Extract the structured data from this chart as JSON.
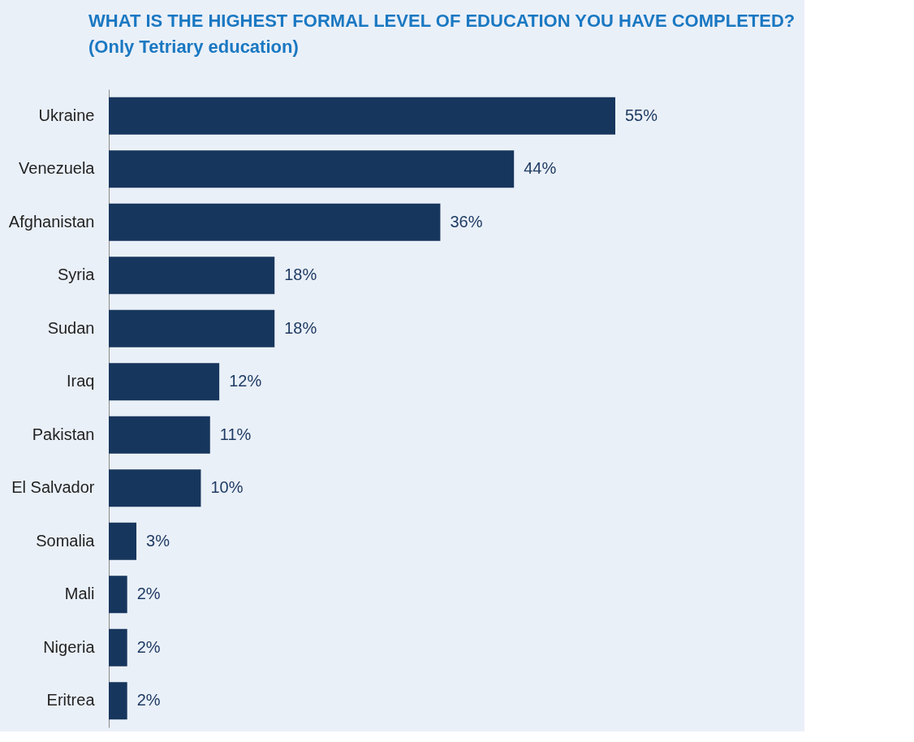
{
  "chart_data": {
    "type": "bar",
    "orientation": "horizontal",
    "title": "WHAT IS THE HIGHEST FORMAL LEVEL OF EDUCATION YOU HAVE COMPLETED?",
    "subtitle": "(Only Tetriary education)",
    "categories": [
      "Ukraine",
      "Venezuela",
      "Afghanistan",
      "Syria",
      "Sudan",
      "Iraq",
      "Pakistan",
      "El Salvador",
      "Somalia",
      "Mali",
      "Nigeria",
      "Eritrea"
    ],
    "values": [
      55,
      44,
      36,
      18,
      18,
      12,
      11,
      10,
      3,
      2,
      2,
      2
    ],
    "value_labels": [
      "55%",
      "44%",
      "36%",
      "18%",
      "18%",
      "12%",
      "11%",
      "10%",
      "3%",
      "2%",
      "2%",
      "2%"
    ],
    "color": "#17365d"
  }
}
